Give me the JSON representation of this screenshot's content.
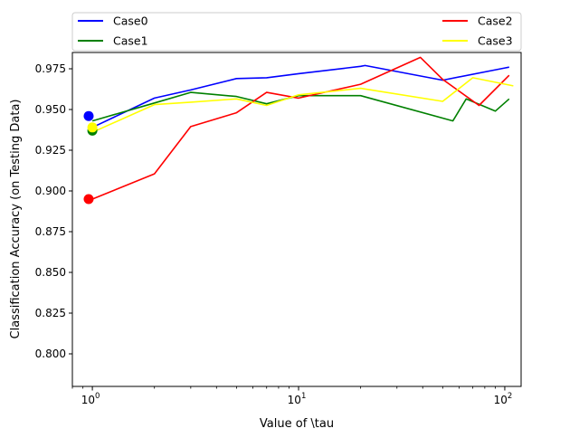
{
  "chart_data": {
    "type": "line",
    "title": "",
    "xlabel": "Value of \\tau",
    "ylabel": "Classification Accuracy (on Testing Data)",
    "xscale": "log",
    "xlim": [
      0.8,
      120
    ],
    "ylim": [
      0.78,
      0.985
    ],
    "grid": false,
    "legend": {
      "placement": "top, outside plot, two columns"
    },
    "x_ticks": [
      {
        "value": 1,
        "base": "10",
        "exp": "0"
      },
      {
        "value": 10,
        "base": "10",
        "exp": "1"
      },
      {
        "value": 100,
        "base": "10",
        "exp": "2"
      }
    ],
    "y_ticks": [
      {
        "value": 0.8,
        "label": "0.800"
      },
      {
        "value": 0.825,
        "label": "0.825"
      },
      {
        "value": 0.85,
        "label": "0.850"
      },
      {
        "value": 0.875,
        "label": "0.875"
      },
      {
        "value": 0.9,
        "label": "0.900"
      },
      {
        "value": 0.925,
        "label": "0.925"
      },
      {
        "value": 0.95,
        "label": "0.950"
      },
      {
        "value": 0.975,
        "label": "0.975"
      }
    ],
    "series": [
      {
        "name": "Case0",
        "color": "#0000ff",
        "x": [
          1,
          2,
          3,
          5,
          7,
          10,
          20,
          21,
          50,
          100,
          105
        ],
        "y": [
          0.939,
          0.957,
          0.962,
          0.969,
          0.9695,
          0.972,
          0.9765,
          0.977,
          0.968,
          0.9755,
          0.976
        ],
        "marker": {
          "x": 0.96,
          "y": 0.946
        }
      },
      {
        "name": "Case1",
        "color": "#008000",
        "x": [
          1,
          2,
          3,
          5,
          7,
          10,
          20,
          56,
          65,
          90,
          105
        ],
        "y": [
          0.943,
          0.954,
          0.9605,
          0.958,
          0.9535,
          0.9585,
          0.9585,
          0.943,
          0.9565,
          0.949,
          0.9565
        ],
        "marker": {
          "x": 1.0,
          "y": 0.937
        }
      },
      {
        "name": "Case2",
        "color": "#ff0000",
        "x": [
          1,
          2,
          3,
          5,
          7,
          10,
          20,
          39,
          50,
          75,
          105
        ],
        "y": [
          0.895,
          0.9105,
          0.9395,
          0.948,
          0.9605,
          0.957,
          0.9655,
          0.982,
          0.9685,
          0.9525,
          0.971
        ],
        "marker": {
          "x": 0.96,
          "y": 0.895
        }
      },
      {
        "name": "Case3",
        "color": "#ffff00",
        "x": [
          1,
          2,
          3,
          5,
          7,
          10,
          20,
          50,
          70,
          110
        ],
        "y": [
          0.936,
          0.953,
          0.9545,
          0.9565,
          0.9525,
          0.959,
          0.963,
          0.955,
          0.9695,
          0.9645
        ],
        "marker": {
          "x": 1.0,
          "y": 0.939
        }
      }
    ]
  }
}
